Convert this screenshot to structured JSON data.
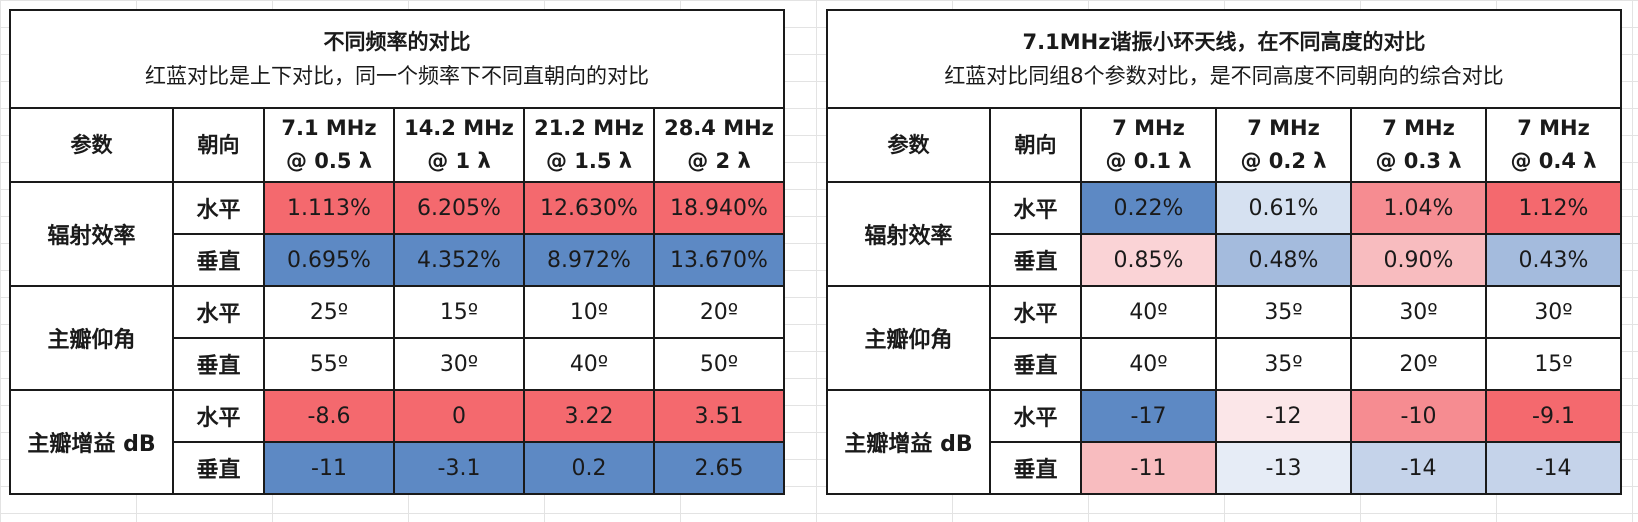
{
  "colors": {
    "red_strong": "#f4696e",
    "red_mid": "#f68c91",
    "red_light": "#f8bcbf",
    "red_pale": "#fad3d6",
    "red_faint": "#fbe6e8",
    "blue_strong": "#5d89c4",
    "blue_mid": "#a4bbdd",
    "blue_light": "#c5d3ea",
    "blue_pale": "#d6e1f1",
    "blue_faint": "#e6ecf6",
    "white": "#ffffff",
    "grid_border": "#1a1a1a",
    "sheet_gridline": "#e3e3e3"
  },
  "left_table": {
    "title": "不同频率的对比",
    "subtitle": "红蓝对比是上下对比，同一个频率下不同直朝向的对比",
    "header_param": "参数",
    "header_dir": "朝向",
    "columns": [
      {
        "line1": "7.1 MHz",
        "line2": "@ 0.5 λ"
      },
      {
        "line1": "14.2 MHz",
        "line2": "@ 1 λ"
      },
      {
        "line1": "21.2 MHz",
        "line2": "@ 1.5 λ"
      },
      {
        "line1": "28.4 MHz",
        "line2": "@ 2 λ"
      }
    ],
    "groups": [
      {
        "label": "辐射效率",
        "rows": [
          {
            "dir": "水平",
            "cells": [
              {
                "v": "1.113%",
                "c": "#f4696e"
              },
              {
                "v": "6.205%",
                "c": "#f4696e"
              },
              {
                "v": "12.630%",
                "c": "#f4696e"
              },
              {
                "v": "18.940%",
                "c": "#f4696e"
              }
            ]
          },
          {
            "dir": "垂直",
            "cells": [
              {
                "v": "0.695%",
                "c": "#5d89c4"
              },
              {
                "v": "4.352%",
                "c": "#5d89c4"
              },
              {
                "v": "8.972%",
                "c": "#5d89c4"
              },
              {
                "v": "13.670%",
                "c": "#5d89c4"
              }
            ]
          }
        ]
      },
      {
        "label": "主瓣仰角",
        "rows": [
          {
            "dir": "水平",
            "cells": [
              {
                "v": "25º",
                "c": "#ffffff"
              },
              {
                "v": "15º",
                "c": "#ffffff"
              },
              {
                "v": "10º",
                "c": "#ffffff"
              },
              {
                "v": "20º",
                "c": "#ffffff"
              }
            ]
          },
          {
            "dir": "垂直",
            "cells": [
              {
                "v": "55º",
                "c": "#ffffff"
              },
              {
                "v": "30º",
                "c": "#ffffff"
              },
              {
                "v": "40º",
                "c": "#ffffff"
              },
              {
                "v": "50º",
                "c": "#ffffff"
              }
            ]
          }
        ]
      },
      {
        "label": "主瓣增益 dB",
        "rows": [
          {
            "dir": "水平",
            "cells": [
              {
                "v": "-8.6",
                "c": "#f4696e"
              },
              {
                "v": "0",
                "c": "#f4696e"
              },
              {
                "v": "3.22",
                "c": "#f4696e"
              },
              {
                "v": "3.51",
                "c": "#f4696e"
              }
            ]
          },
          {
            "dir": "垂直",
            "cells": [
              {
                "v": "-11",
                "c": "#5d89c4"
              },
              {
                "v": "-3.1",
                "c": "#5d89c4"
              },
              {
                "v": "0.2",
                "c": "#5d89c4"
              },
              {
                "v": "2.65",
                "c": "#5d89c4"
              }
            ]
          }
        ]
      }
    ]
  },
  "right_table": {
    "title": "7.1MHz谐振小环天线，在不同高度的对比",
    "subtitle": "红蓝对比同组8个参数对比，是不同高度不同朝向的综合对比",
    "header_param": "参数",
    "header_dir": "朝向",
    "columns": [
      {
        "line1": "7 MHz",
        "line2": "@ 0.1 λ"
      },
      {
        "line1": "7 MHz",
        "line2": "@ 0.2 λ"
      },
      {
        "line1": "7 MHz",
        "line2": "@ 0.3 λ"
      },
      {
        "line1": "7 MHz",
        "line2": "@ 0.4 λ"
      }
    ],
    "groups": [
      {
        "label": "辐射效率",
        "rows": [
          {
            "dir": "水平",
            "cells": [
              {
                "v": "0.22%",
                "c": "#5d89c4"
              },
              {
                "v": "0.61%",
                "c": "#d6e1f1"
              },
              {
                "v": "1.04%",
                "c": "#f68c91"
              },
              {
                "v": "1.12%",
                "c": "#f4696e"
              }
            ]
          },
          {
            "dir": "垂直",
            "cells": [
              {
                "v": "0.85%",
                "c": "#fad3d6"
              },
              {
                "v": "0.48%",
                "c": "#a4bbdd"
              },
              {
                "v": "0.90%",
                "c": "#f8bcbf"
              },
              {
                "v": "0.43%",
                "c": "#a4bbdd"
              }
            ]
          }
        ]
      },
      {
        "label": "主瓣仰角",
        "rows": [
          {
            "dir": "水平",
            "cells": [
              {
                "v": "40º",
                "c": "#ffffff"
              },
              {
                "v": "35º",
                "c": "#ffffff"
              },
              {
                "v": "30º",
                "c": "#ffffff"
              },
              {
                "v": "30º",
                "c": "#ffffff"
              }
            ]
          },
          {
            "dir": "垂直",
            "cells": [
              {
                "v": "40º",
                "c": "#ffffff"
              },
              {
                "v": "35º",
                "c": "#ffffff"
              },
              {
                "v": "20º",
                "c": "#ffffff"
              },
              {
                "v": "15º",
                "c": "#ffffff"
              }
            ]
          }
        ]
      },
      {
        "label": "主瓣增益 dB",
        "rows": [
          {
            "dir": "水平",
            "cells": [
              {
                "v": "-17",
                "c": "#5d89c4"
              },
              {
                "v": "-12",
                "c": "#fbe6e8"
              },
              {
                "v": "-10",
                "c": "#f68c91"
              },
              {
                "v": "-9.1",
                "c": "#f4696e"
              }
            ]
          },
          {
            "dir": "垂直",
            "cells": [
              {
                "v": "-11",
                "c": "#f8bcbf"
              },
              {
                "v": "-13",
                "c": "#e6ecf6"
              },
              {
                "v": "-14",
                "c": "#c5d3ea"
              },
              {
                "v": "-14",
                "c": "#c5d3ea"
              }
            ]
          }
        ]
      }
    ]
  }
}
